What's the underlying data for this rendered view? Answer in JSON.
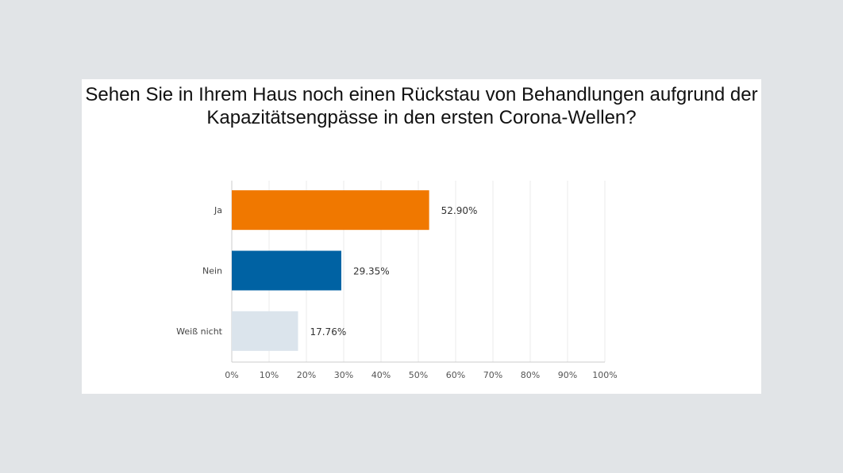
{
  "chart_data": {
    "type": "bar",
    "orientation": "horizontal",
    "title": "Sehen Sie in Ihrem Haus noch einen Rückstau von Behandlungen aufgrund der Kapazitätsengpässe in den ersten Corona-Wellen?",
    "title_lines": [
      "Sehen Sie in Ihrem Haus noch einen Rückstau von Behandlungen aufgrund der",
      "Kapazitätsengpässe in den ersten Corona-Wellen?"
    ],
    "categories": [
      "Ja",
      "Nein",
      "Weiß nicht"
    ],
    "values": [
      52.9,
      29.35,
      17.76
    ],
    "value_labels": [
      "52.90%",
      "29.35%",
      "17.76%"
    ],
    "colors": [
      "#f07800",
      "#0062a3",
      "#dbe4ec"
    ],
    "xlabel": "",
    "ylabel": "",
    "xlim": [
      0,
      100
    ],
    "xticks": [
      0,
      10,
      20,
      30,
      40,
      50,
      60,
      70,
      80,
      90,
      100
    ],
    "xtick_labels": [
      "0%",
      "10%",
      "20%",
      "30%",
      "40%",
      "50%",
      "60%",
      "70%",
      "80%",
      "90%",
      "100%"
    ],
    "grid": true,
    "legend": "none"
  }
}
